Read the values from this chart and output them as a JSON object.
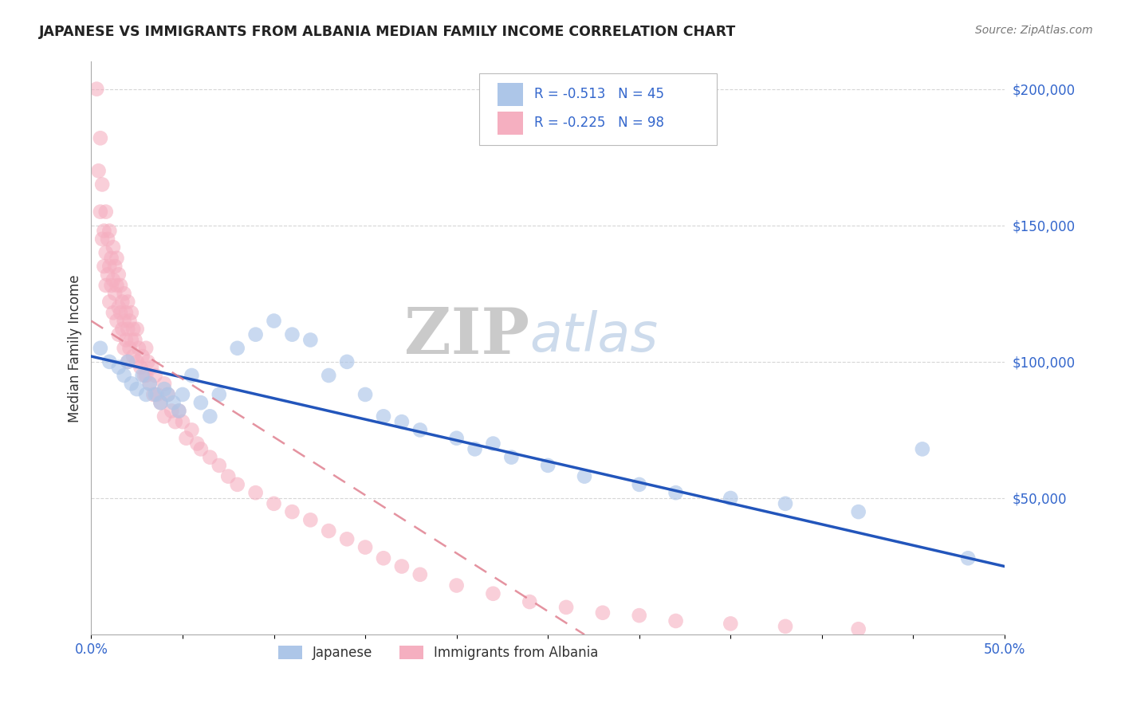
{
  "title": "JAPANESE VS IMMIGRANTS FROM ALBANIA MEDIAN FAMILY INCOME CORRELATION CHART",
  "source": "Source: ZipAtlas.com",
  "ylabel": "Median Family Income",
  "watermark_part1": "ZIP",
  "watermark_part2": "atlas",
  "legend_r_japanese": "-0.513",
  "legend_n_japanese": "45",
  "legend_r_albania": "-0.225",
  "legend_n_albania": "98",
  "xlim": [
    0.0,
    0.5
  ],
  "ylim": [
    0,
    210000
  ],
  "ytick_vals": [
    50000,
    100000,
    150000,
    200000
  ],
  "ytick_labels": [
    "$50,000",
    "$100,000",
    "$150,000",
    "$200,000"
  ],
  "japanese_color": "#adc6e8",
  "albania_color": "#f5afc0",
  "japanese_line_color": "#2255bb",
  "albania_line_color": "#e08090",
  "japanese_x": [
    0.005,
    0.01,
    0.015,
    0.018,
    0.02,
    0.022,
    0.025,
    0.028,
    0.03,
    0.032,
    0.035,
    0.038,
    0.04,
    0.042,
    0.045,
    0.048,
    0.05,
    0.055,
    0.06,
    0.065,
    0.07,
    0.08,
    0.09,
    0.1,
    0.11,
    0.12,
    0.13,
    0.14,
    0.15,
    0.16,
    0.17,
    0.18,
    0.2,
    0.21,
    0.22,
    0.23,
    0.25,
    0.27,
    0.3,
    0.32,
    0.35,
    0.38,
    0.42,
    0.455,
    0.48
  ],
  "japanese_y": [
    105000,
    100000,
    98000,
    95000,
    100000,
    92000,
    90000,
    95000,
    88000,
    92000,
    88000,
    85000,
    90000,
    88000,
    85000,
    82000,
    88000,
    95000,
    85000,
    80000,
    88000,
    105000,
    110000,
    115000,
    110000,
    108000,
    95000,
    100000,
    88000,
    80000,
    78000,
    75000,
    72000,
    68000,
    70000,
    65000,
    62000,
    58000,
    55000,
    52000,
    50000,
    48000,
    45000,
    68000,
    28000
  ],
  "albania_x": [
    0.003,
    0.004,
    0.005,
    0.005,
    0.006,
    0.006,
    0.007,
    0.007,
    0.008,
    0.008,
    0.008,
    0.009,
    0.009,
    0.01,
    0.01,
    0.01,
    0.011,
    0.011,
    0.012,
    0.012,
    0.012,
    0.013,
    0.013,
    0.014,
    0.014,
    0.014,
    0.015,
    0.015,
    0.015,
    0.016,
    0.016,
    0.017,
    0.017,
    0.018,
    0.018,
    0.018,
    0.019,
    0.019,
    0.02,
    0.02,
    0.02,
    0.021,
    0.021,
    0.022,
    0.022,
    0.023,
    0.023,
    0.024,
    0.025,
    0.025,
    0.026,
    0.027,
    0.028,
    0.029,
    0.03,
    0.03,
    0.031,
    0.032,
    0.033,
    0.034,
    0.035,
    0.036,
    0.038,
    0.04,
    0.04,
    0.042,
    0.044,
    0.046,
    0.048,
    0.05,
    0.052,
    0.055,
    0.058,
    0.06,
    0.065,
    0.07,
    0.075,
    0.08,
    0.09,
    0.1,
    0.11,
    0.12,
    0.13,
    0.14,
    0.15,
    0.16,
    0.17,
    0.18,
    0.2,
    0.22,
    0.24,
    0.26,
    0.28,
    0.3,
    0.32,
    0.35,
    0.38,
    0.42
  ],
  "albania_y": [
    200000,
    170000,
    182000,
    155000,
    165000,
    145000,
    148000,
    135000,
    155000,
    140000,
    128000,
    145000,
    132000,
    148000,
    135000,
    122000,
    138000,
    128000,
    142000,
    130000,
    118000,
    135000,
    125000,
    138000,
    128000,
    115000,
    132000,
    120000,
    110000,
    128000,
    118000,
    122000,
    112000,
    125000,
    115000,
    105000,
    118000,
    108000,
    122000,
    112000,
    100000,
    115000,
    105000,
    118000,
    108000,
    112000,
    102000,
    108000,
    112000,
    100000,
    105000,
    98000,
    102000,
    95000,
    105000,
    95000,
    100000,
    92000,
    98000,
    88000,
    95000,
    88000,
    85000,
    92000,
    80000,
    88000,
    82000,
    78000,
    82000,
    78000,
    72000,
    75000,
    70000,
    68000,
    65000,
    62000,
    58000,
    55000,
    52000,
    48000,
    45000,
    42000,
    38000,
    35000,
    32000,
    28000,
    25000,
    22000,
    18000,
    15000,
    12000,
    10000,
    8000,
    7000,
    5000,
    4000,
    3000,
    2000
  ]
}
